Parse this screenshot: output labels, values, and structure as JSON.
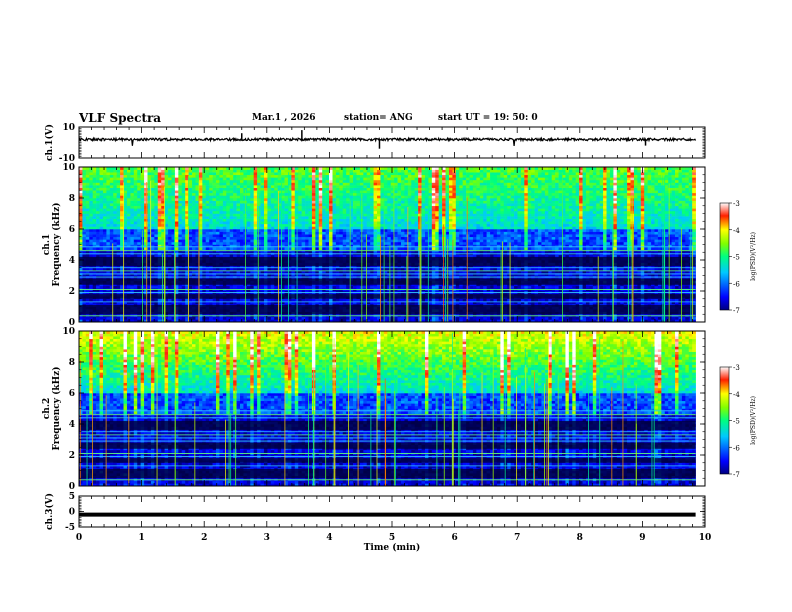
{
  "header": {
    "title": "VLF Spectra",
    "date": "Mar.1 , 2026",
    "station": "station= ANG",
    "start": "start UT =  19: 50: 0"
  },
  "chart_data": {
    "type": "heatmap",
    "title": "VLF Spectra",
    "xlabel": "Time (min)",
    "xlim": [
      0,
      10
    ],
    "x_ticks": [
      "0",
      "1",
      "2",
      "3",
      "4",
      "5",
      "6",
      "7",
      "8",
      "9",
      "10"
    ],
    "panels": [
      {
        "id": "ch1-waveform",
        "type": "line",
        "ylabel": "ch.1(V)",
        "ylim": [
          -10,
          10
        ],
        "y_ticks": [
          "10",
          "-10"
        ],
        "baseline": 2
      },
      {
        "id": "ch1-spectrogram",
        "type": "heatmap",
        "ylabel": "ch.1 Frequency (kHz)",
        "ylim": [
          0,
          10
        ],
        "y_ticks": [
          "0",
          "2",
          "4",
          "6",
          "8",
          "10"
        ],
        "colorbar": {
          "label": "log(PSD)(V²/Hz)",
          "range": [
            -7,
            -3
          ],
          "ticks": [
            "-3",
            "-4",
            "-5",
            "-6",
            "-7"
          ]
        }
      },
      {
        "id": "ch2-spectrogram",
        "type": "heatmap",
        "ylabel": "ch.2 Frequency (kHz)",
        "ylim": [
          0,
          10
        ],
        "y_ticks": [
          "0",
          "2",
          "4",
          "6",
          "8",
          "10"
        ],
        "colorbar": {
          "label": "log(PSD)(V²/Hz)",
          "range": [
            -7,
            -3
          ],
          "ticks": [
            "-3",
            "-4",
            "-5",
            "-6",
            "-7"
          ]
        }
      },
      {
        "id": "ch3-waveform",
        "type": "line",
        "ylabel": "ch.3(V)",
        "ylim": [
          -5,
          5
        ],
        "y_ticks": [
          "5",
          "0",
          "-5"
        ],
        "baseline": -1
      }
    ],
    "data_extent_min": 9.85
  }
}
